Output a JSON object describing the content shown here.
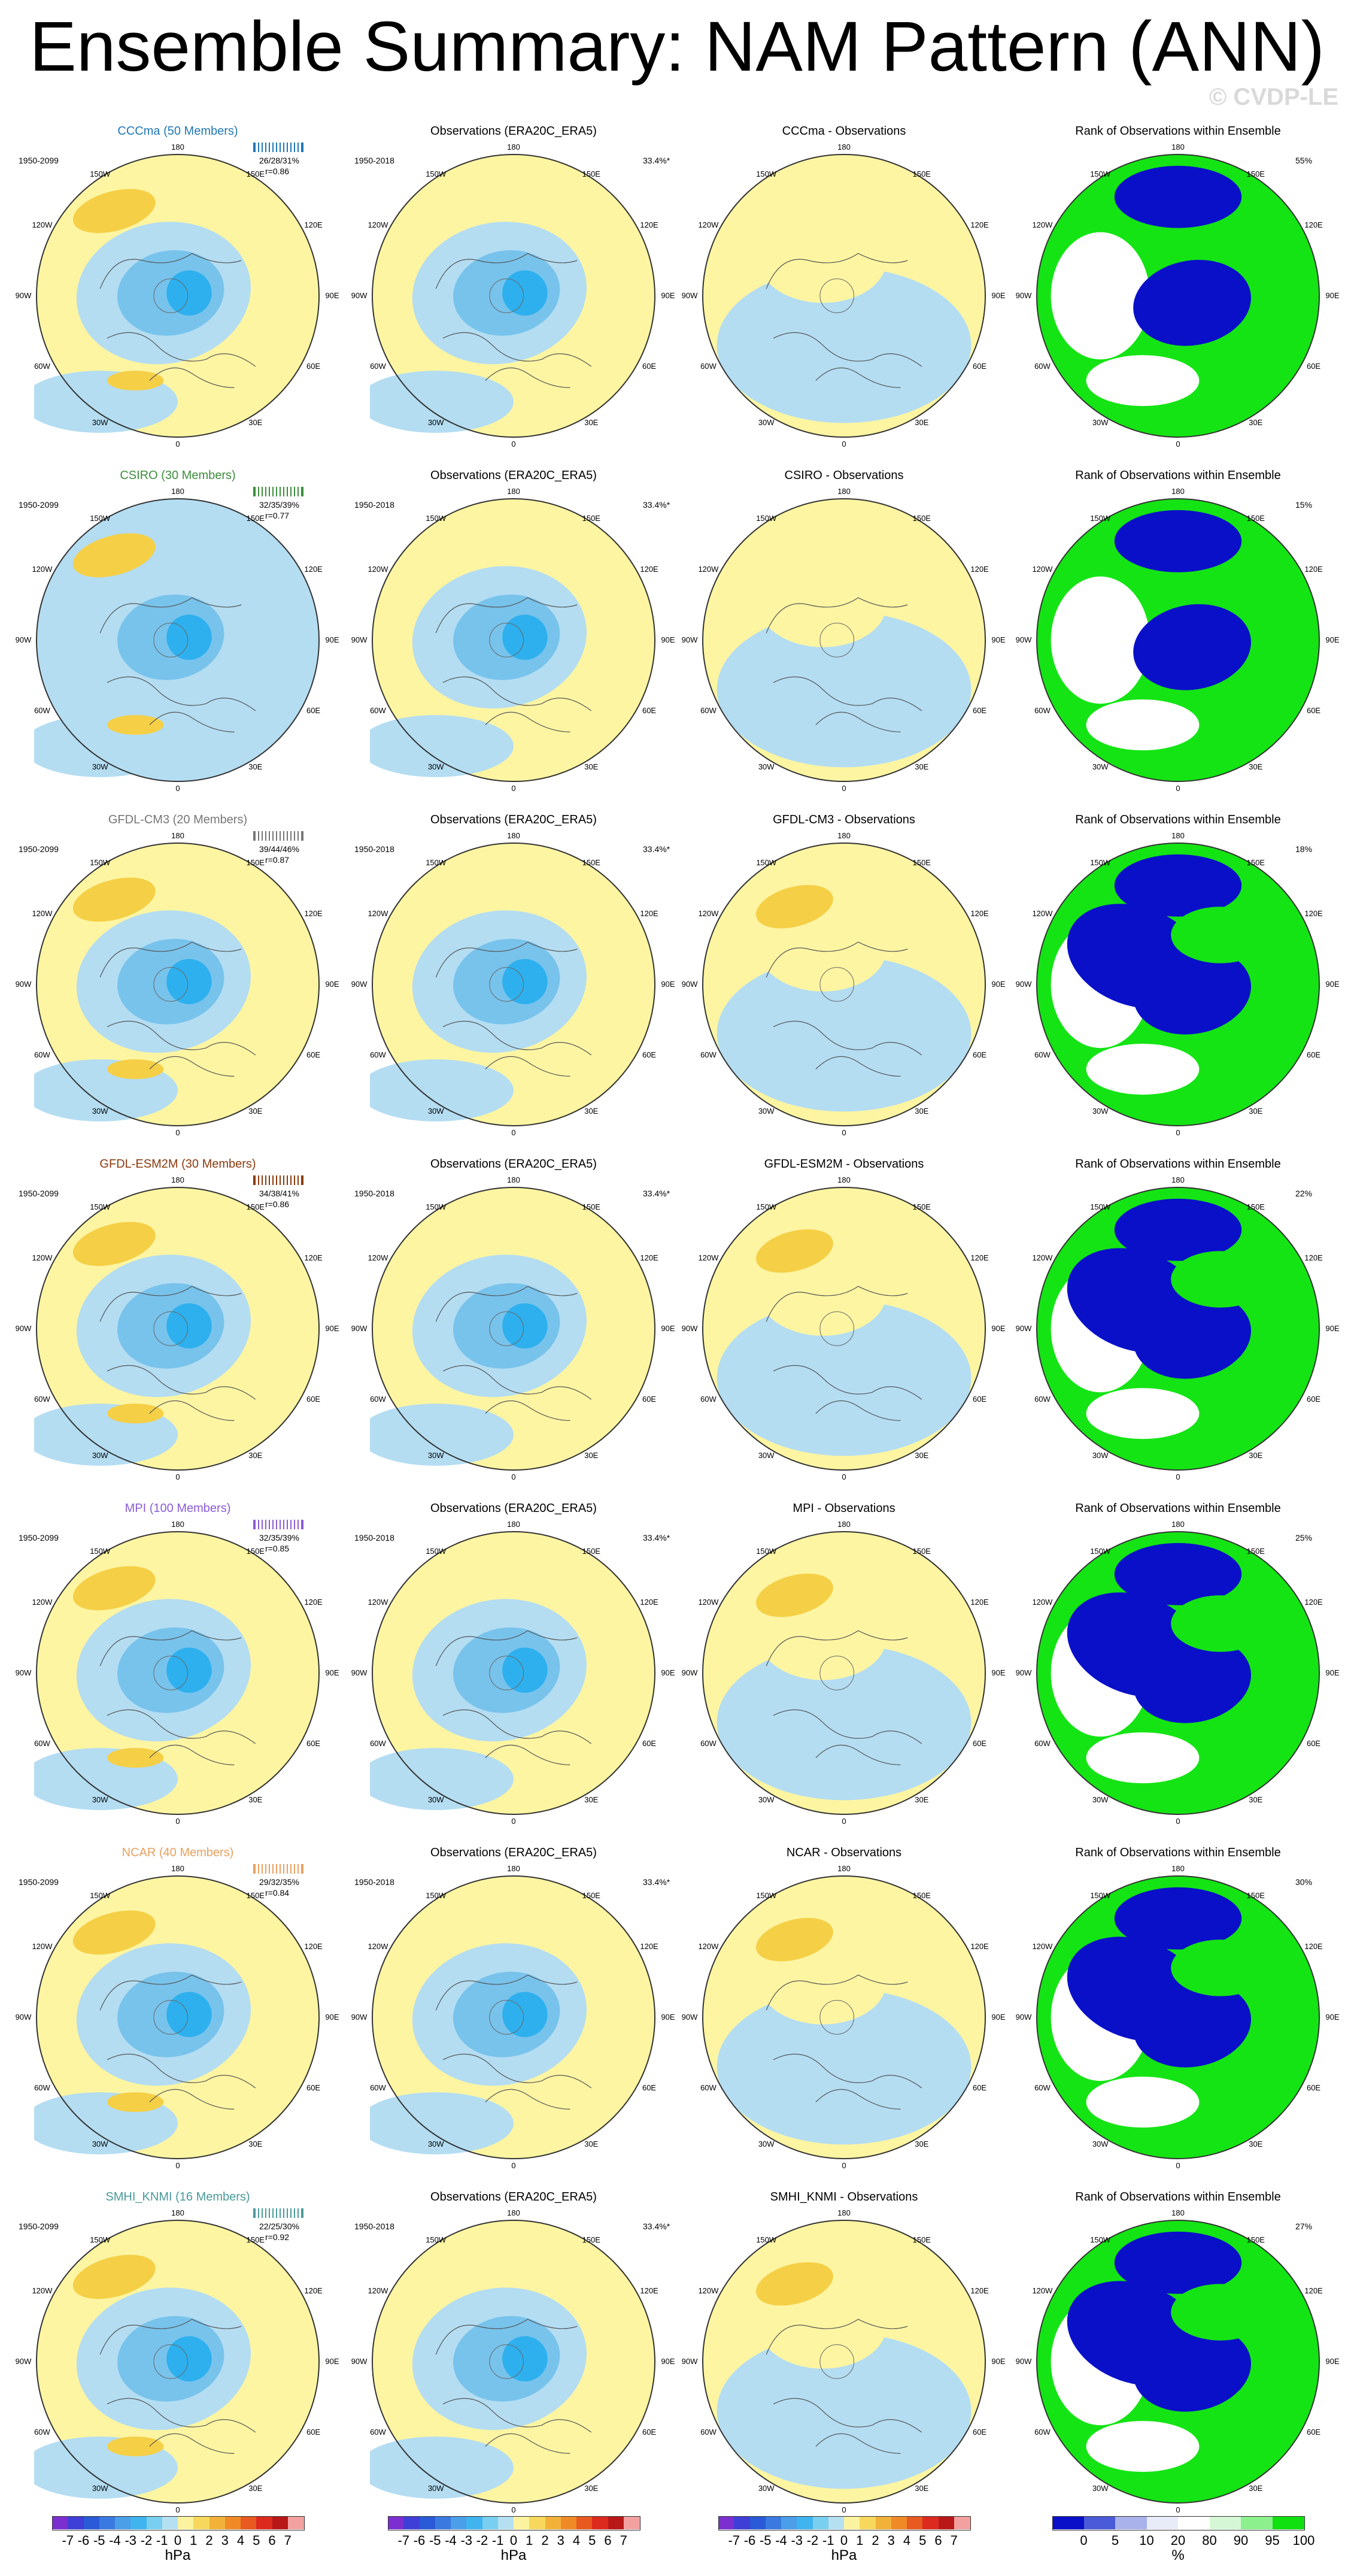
{
  "title": "Ensemble Summary: NAM Pattern (ANN)",
  "watermark": "© CVDP-LE",
  "rows": [
    {
      "model": "CCCma (50 Members)",
      "model_color": "#1f77b4",
      "diff_title": "CCCma - Observations",
      "obs_title": "Observations (ERA20C_ERA5)",
      "rank_title": "Rank of Observations within Ensemble",
      "period_model": "1950-2099",
      "period_obs": "1950-2018",
      "stats": "26/28/31%",
      "r": "r=0.86",
      "obs_pct": "33.4%*",
      "rank_pct": "55%",
      "style": "a"
    },
    {
      "model": "CSIRO (30 Members)",
      "model_color": "#3c8c3c",
      "diff_title": "CSIRO - Observations",
      "obs_title": "Observations (ERA20C_ERA5)",
      "rank_title": "Rank of Observations within Ensemble",
      "period_model": "1950-2099",
      "period_obs": "1950-2018",
      "stats": "32/35/39%",
      "r": "r=0.77",
      "obs_pct": "33.4%*",
      "rank_pct": "15%",
      "style": "b"
    },
    {
      "model": "GFDL-CM3 (20 Members)",
      "model_color": "#777777",
      "diff_title": "GFDL-CM3 - Observations",
      "obs_title": "Observations (ERA20C_ERA5)",
      "rank_title": "Rank of Observations within Ensemble",
      "period_model": "1950-2099",
      "period_obs": "1950-2018",
      "stats": "39/44/46%",
      "r": "r=0.87",
      "obs_pct": "33.4%*",
      "rank_pct": "18%",
      "style": "c"
    },
    {
      "model": "GFDL-ESM2M (30 Members)",
      "model_color": "#8b3a0e",
      "diff_title": "GFDL-ESM2M - Observations",
      "obs_title": "Observations (ERA20C_ERA5)",
      "rank_title": "Rank of Observations within Ensemble",
      "period_model": "1950-2099",
      "period_obs": "1950-2018",
      "stats": "34/38/41%",
      "r": "r=0.86",
      "obs_pct": "33.4%*",
      "rank_pct": "22%",
      "style": "c"
    },
    {
      "model": "MPI (100 Members)",
      "model_color": "#8a5cd6",
      "diff_title": "MPI - Observations",
      "obs_title": "Observations (ERA20C_ERA5)",
      "rank_title": "Rank of Observations within Ensemble",
      "period_model": "1950-2099",
      "period_obs": "1950-2018",
      "stats": "32/35/39%",
      "r": "r=0.85",
      "obs_pct": "33.4%*",
      "rank_pct": "25%",
      "style": "c"
    },
    {
      "model": "NCAR (40 Members)",
      "model_color": "#e8a060",
      "diff_title": "NCAR - Observations",
      "obs_title": "Observations (ERA20C_ERA5)",
      "rank_title": "Rank of Observations within Ensemble",
      "period_model": "1950-2099",
      "period_obs": "1950-2018",
      "stats": "29/32/35%",
      "r": "r=0.84",
      "obs_pct": "33.4%*",
      "rank_pct": "30%",
      "style": "c"
    },
    {
      "model": "SMHI_KNMI (16 Members)",
      "model_color": "#4a9a9a",
      "diff_title": "SMHI_KNMI - Observations",
      "obs_title": "Observations (ERA20C_ERA5)",
      "rank_title": "Rank of Observations within Ensemble",
      "period_model": "1950-2099",
      "period_obs": "1950-2018",
      "stats": "22/25/30%",
      "r": "r=0.92",
      "obs_pct": "33.4%*",
      "rank_pct": "27%",
      "style": "c"
    }
  ],
  "lon_labels": {
    "top": "180",
    "tl": "150W",
    "tr": "150E",
    "ul": "120W",
    "ur": "120E",
    "l": "90W",
    "r": "90E",
    "ll": "60W",
    "lr": "60E",
    "bl": "30W",
    "br": "30E",
    "bottom": "0"
  },
  "hpa_colorbar": {
    "labels": [
      "-7",
      "-6",
      "-5",
      "-4",
      "-3",
      "-2",
      "-1",
      "0",
      "1",
      "2",
      "3",
      "4",
      "5",
      "6",
      "7"
    ],
    "colors": [
      "#7b2fd0",
      "#3f3fd8",
      "#2a5ad8",
      "#3a7ae0",
      "#4b9ee8",
      "#3fb4ef",
      "#78cfef",
      "#b4e0f2",
      "#fbf3a0",
      "#f7d85c",
      "#f2b23a",
      "#ef8a27",
      "#e85a1f",
      "#dc2a1e",
      "#b81818",
      "#f2a0a0"
    ],
    "unit": "hPa"
  },
  "rank_colorbar": {
    "labels": [
      "0",
      "5",
      "10",
      "20",
      "80",
      "90",
      "95",
      "100"
    ],
    "colors": [
      "#0a10c8",
      "#4a5ad8",
      "#a9b2ea",
      "#e8ebf8",
      "#ffffff",
      "#d6f7d6",
      "#8cf08c",
      "#10e010"
    ],
    "unit": "%"
  },
  "palette": {
    "yellow": "#fdf5a2",
    "pale_blue": "#b4ddf2",
    "mid_blue": "#78c3ec",
    "deep_blue": "#2eb0ee",
    "orange": "#f5cf46",
    "rank_blue": "#0a10c8",
    "rank_green": "#14e414",
    "rank_white": "#ffffff"
  }
}
